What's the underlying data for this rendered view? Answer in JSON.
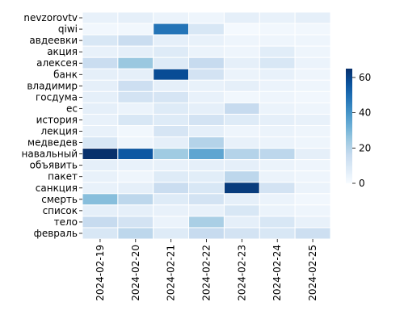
{
  "chart_data": {
    "type": "heatmap",
    "title": "",
    "xlabel": "",
    "ylabel": "",
    "colormap": "Blues",
    "colorbar": {
      "min": 0,
      "max": 65,
      "ticks": [
        0,
        20,
        40,
        60
      ]
    },
    "x": [
      "2024-02-19",
      "2024-02-20",
      "2024-02-21",
      "2024-02-22",
      "2024-02-23",
      "2024-02-24",
      "2024-02-25"
    ],
    "y": [
      "nevzorovtv",
      "qiwi",
      "авдеевки",
      "акция",
      "алексея",
      "банк",
      "владимир",
      "госдума",
      "ес",
      "история",
      "лекция",
      "медведев",
      "навальный",
      "объявить",
      "пакет",
      "санкция",
      "смерть",
      "список",
      "тело",
      "февраль"
    ],
    "values": [
      [
        5,
        6,
        4,
        3,
        6,
        5,
        6
      ],
      [
        2,
        2,
        48,
        10,
        1,
        2,
        2
      ],
      [
        10,
        15,
        6,
        5,
        3,
        3,
        3
      ],
      [
        5,
        6,
        8,
        4,
        3,
        7,
        3
      ],
      [
        15,
        25,
        8,
        16,
        6,
        10,
        4
      ],
      [
        6,
        6,
        58,
        12,
        4,
        5,
        3
      ],
      [
        6,
        14,
        6,
        5,
        6,
        4,
        3
      ],
      [
        6,
        12,
        11,
        5,
        2,
        3,
        2
      ],
      [
        6,
        4,
        8,
        6,
        16,
        4,
        3
      ],
      [
        5,
        10,
        8,
        12,
        8,
        6,
        5
      ],
      [
        5,
        2,
        11,
        6,
        3,
        4,
        3
      ],
      [
        10,
        3,
        6,
        20,
        5,
        4,
        3
      ],
      [
        65,
        55,
        24,
        35,
        20,
        18,
        6
      ],
      [
        6,
        5,
        5,
        6,
        6,
        4,
        3
      ],
      [
        5,
        3,
        8,
        7,
        18,
        4,
        3
      ],
      [
        5,
        6,
        15,
        10,
        62,
        12,
        4
      ],
      [
        28,
        18,
        8,
        12,
        6,
        4,
        2
      ],
      [
        6,
        6,
        5,
        5,
        10,
        4,
        3
      ],
      [
        16,
        12,
        4,
        22,
        6,
        10,
        5
      ],
      [
        10,
        18,
        8,
        16,
        12,
        10,
        14
      ]
    ]
  }
}
